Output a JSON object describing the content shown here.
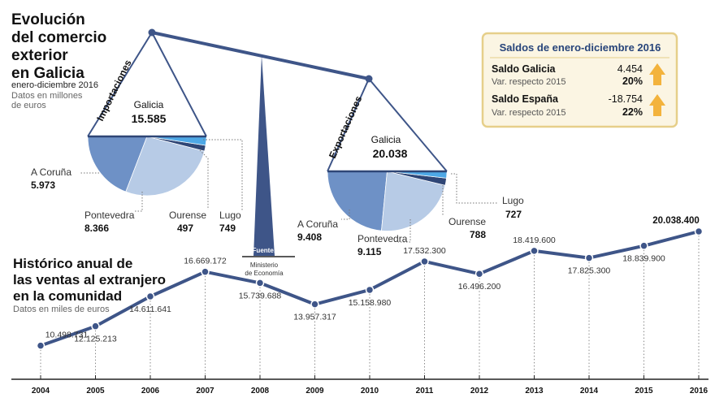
{
  "header": {
    "title_lines": [
      "Evolución",
      "del comercio",
      "exterior",
      "en Galicia"
    ],
    "period": "enero-diciembre 2016",
    "units": [
      "Datos en millones",
      "de euros"
    ]
  },
  "imports": {
    "side_label": "Importaciones",
    "region": "Galicia",
    "total": "15.585",
    "slices": [
      {
        "name": "A Coruña",
        "value": "5.973"
      },
      {
        "name": "Pontevedra",
        "value": "8.366"
      },
      {
        "name": "Ourense",
        "value": "497"
      },
      {
        "name": "Lugo",
        "value": "749"
      }
    ]
  },
  "exports": {
    "side_label": "Exportaciones",
    "region": "Galicia",
    "total": "20.038",
    "slices": [
      {
        "name": "A Coruña",
        "value": "9.408"
      },
      {
        "name": "Pontevedra",
        "value": "9.115"
      },
      {
        "name": "Ourense",
        "value": "788"
      },
      {
        "name": "Lugo",
        "value": "727"
      }
    ]
  },
  "source": {
    "label": "Fuente:",
    "lines": [
      "Ministerio",
      "de Economía"
    ]
  },
  "saldos": {
    "title": "Saldos de enero-diciembre 2016",
    "rows": [
      {
        "name": "Saldo Galicia",
        "value": "4.454",
        "sub": "Var. respecto 2015",
        "pct": "20%"
      },
      {
        "name": "Saldo España",
        "value": "-18.754",
        "sub": "Var. respecto 2015",
        "pct": "22%"
      }
    ]
  },
  "history": {
    "title_lines": [
      "Histórico anual de",
      "las ventas al extranjero",
      "en la comunidad"
    ],
    "units": "Datos en miles de euros"
  },
  "colors": {
    "primary": "#3e5588",
    "dish_dark": "#6e91c6",
    "dish_light": "#b7cbe6",
    "dish_navy": "#2f4676",
    "dish_cyan": "#4ea8e6",
    "box_bg": "#fbf5e3",
    "box_border": "#e6cf8a",
    "arrow": "#f3b33c"
  },
  "chart_data": [
    {
      "type": "pie",
      "title": "Importaciones Galicia",
      "categories": [
        "A Coruña",
        "Pontevedra",
        "Ourense",
        "Lugo"
      ],
      "values": [
        5973,
        8366,
        497,
        749
      ],
      "total": 15585
    },
    {
      "type": "pie",
      "title": "Exportaciones Galicia",
      "categories": [
        "A Coruña",
        "Pontevedra",
        "Ourense",
        "Lugo"
      ],
      "values": [
        9408,
        9115,
        788,
        727
      ],
      "total": 20038
    },
    {
      "type": "line",
      "title": "Histórico anual de las ventas al extranjero en la comunidad",
      "ylabel": "Datos en miles de euros",
      "x": [
        "2004",
        "2005",
        "2006",
        "2007",
        "2008",
        "2009",
        "2010",
        "2011",
        "2012",
        "2013",
        "2014",
        "2015",
        "2016"
      ],
      "values": [
        10498731,
        12125213,
        14611641,
        16669172,
        15739688,
        13957317,
        15158980,
        17532300,
        16496200,
        18419600,
        17825300,
        18839900,
        20038400
      ],
      "labels": [
        "10.498.731",
        "12.125.213",
        "14.611.641",
        "16.669.172",
        "15.739.688",
        "13.957.317",
        "15.158.980",
        "17.532.300",
        "16.496.200",
        "18.419.600",
        "17.825.300",
        "18.839.900",
        "20.038.400"
      ],
      "ylim": [
        10000000,
        20500000
      ]
    }
  ]
}
